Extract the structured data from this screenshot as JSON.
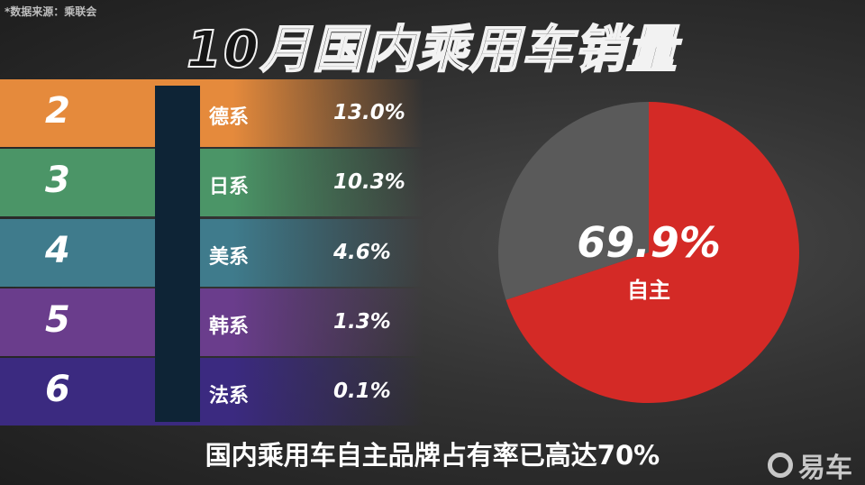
{
  "source": "*数据来源：乘联会",
  "title": "10月国内乘用车销量",
  "rows": [
    {
      "rank": "2",
      "name": "德系",
      "pct": "13.0%",
      "color": "#e58a3c"
    },
    {
      "rank": "3",
      "name": "日系",
      "pct": "10.3%",
      "color": "#4b9567"
    },
    {
      "rank": "4",
      "name": "美系",
      "pct": "4.6%",
      "color": "#3f7b8c"
    },
    {
      "rank": "5",
      "name": "韩系",
      "pct": "1.3%",
      "color": "#6a3d8c"
    },
    {
      "rank": "6",
      "name": "法系",
      "pct": "0.1%",
      "color": "#3b2a80"
    }
  ],
  "chart_data": {
    "type": "pie",
    "slices": [
      {
        "label": "自主",
        "value": 69.9,
        "display": "69.9%",
        "color": "#d42a26"
      },
      {
        "label": "",
        "value": 30.1,
        "color": "#5a5a5a"
      }
    ]
  },
  "caption": "国内乘用车自主品牌占有率已高达70%",
  "logo": "易车"
}
